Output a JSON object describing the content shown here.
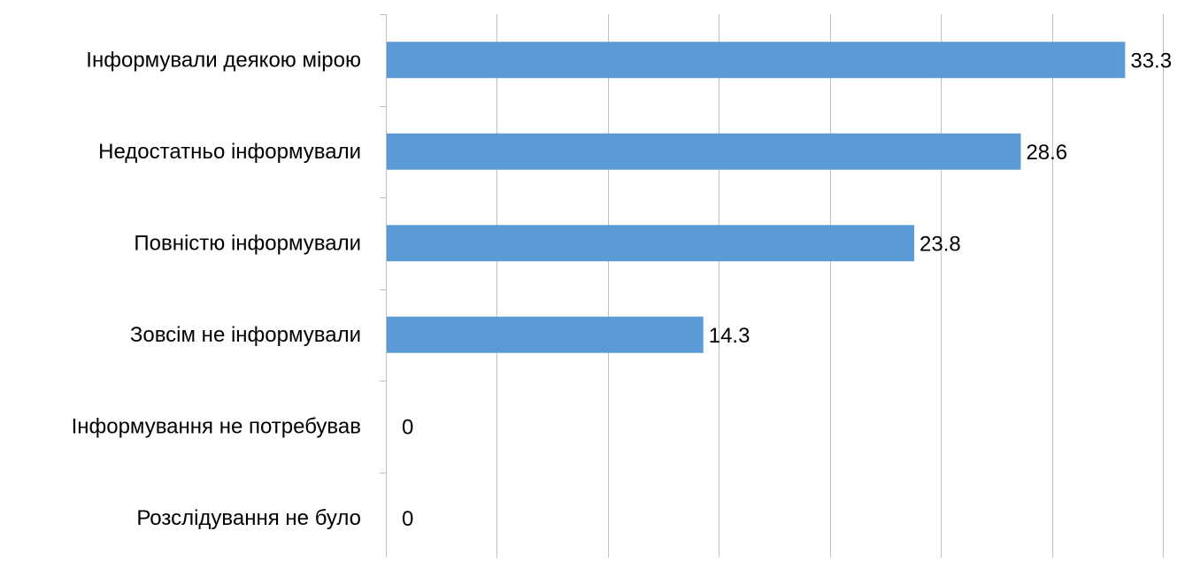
{
  "chart_data": {
    "type": "bar",
    "orientation": "horizontal",
    "categories": [
      "Інформували деякою мірою",
      "Недостатньо інформували",
      "Повністю інформували",
      "Зовсім не інформували",
      "Інформування не потребував",
      "Розслідування не було"
    ],
    "series": [
      {
        "values": [
          33.3,
          28.6,
          23.8,
          14.3,
          0,
          0
        ]
      }
    ],
    "data_labels": [
      "33.3",
      "28.6",
      "23.8",
      "14.3",
      "0",
      "0"
    ],
    "xlim": [
      0,
      35
    ],
    "x_gridline_step": 5,
    "x_tick_labels_shown": false,
    "grid": true,
    "legend": "none",
    "bar_color": "#5b9bd5",
    "grid_color": "#bfbfbf",
    "axis_color": "#bfbfbf"
  }
}
